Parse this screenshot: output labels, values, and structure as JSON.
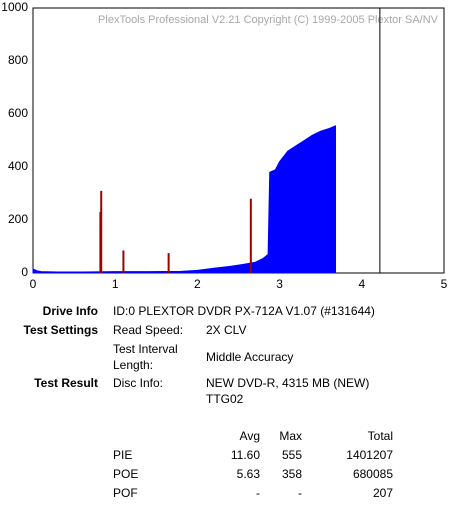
{
  "chart_data": {
    "type": "area",
    "annotation": "PlexTools Professional V2.21 Copyright (C) 1999-2005 Plextor SA/NV",
    "xlim": [
      0,
      5
    ],
    "xticks": [
      0,
      1,
      2,
      3,
      4,
      5
    ],
    "ylim": [
      0,
      1000
    ],
    "yticks": [
      0,
      200,
      400,
      600,
      800,
      1000
    ],
    "grid": true,
    "series": [
      {
        "color": "#0000ff",
        "style": "area",
        "x": [
          0,
          0.05,
          0.1,
          0.3,
          0.6,
          1.0,
          1.4,
          1.8,
          2.0,
          2.2,
          2.4,
          2.55,
          2.7,
          2.8,
          2.86,
          2.88,
          2.95,
          3.0,
          3.1,
          3.2,
          3.3,
          3.4,
          3.5,
          3.6,
          3.68
        ],
        "values": [
          15,
          8,
          5,
          4,
          4,
          5,
          5,
          6,
          10,
          18,
          25,
          32,
          40,
          55,
          70,
          380,
          390,
          420,
          460,
          480,
          500,
          520,
          535,
          545,
          555
        ]
      },
      {
        "color": "#a00000",
        "style": "spikes",
        "x": [
          0.82,
          0.83,
          1.1,
          1.65,
          2.65
        ],
        "values": [
          230,
          310,
          85,
          75,
          280
        ]
      },
      {
        "color": "#000000",
        "style": "vline",
        "x": [
          4.22
        ]
      }
    ]
  },
  "info": {
    "drive": {
      "label": "Drive Info",
      "value": "ID:0 PLEXTOR DVDR PX-712A V1.07 (#131644)"
    },
    "settings": {
      "label": "Test Settings",
      "speed_label": "Read Speed:",
      "speed": "2X CLV",
      "interval_label": [
        "Test Interval",
        "Length:"
      ],
      "interval": "Middle Accuracy"
    },
    "result": {
      "label": "Test Result",
      "disc_label": "Disc Info:",
      "disc": [
        "NEW DVD-R, 4315 MB (NEW)",
        "TTG02"
      ]
    },
    "table": {
      "header": [
        "Avg",
        "Max",
        "Total"
      ],
      "rows": [
        [
          "PIE",
          "11.60",
          "555",
          "1401207"
        ],
        [
          "POE",
          "5.63",
          "358",
          "680085"
        ],
        [
          "POF",
          "-",
          "-",
          "207"
        ]
      ]
    }
  }
}
